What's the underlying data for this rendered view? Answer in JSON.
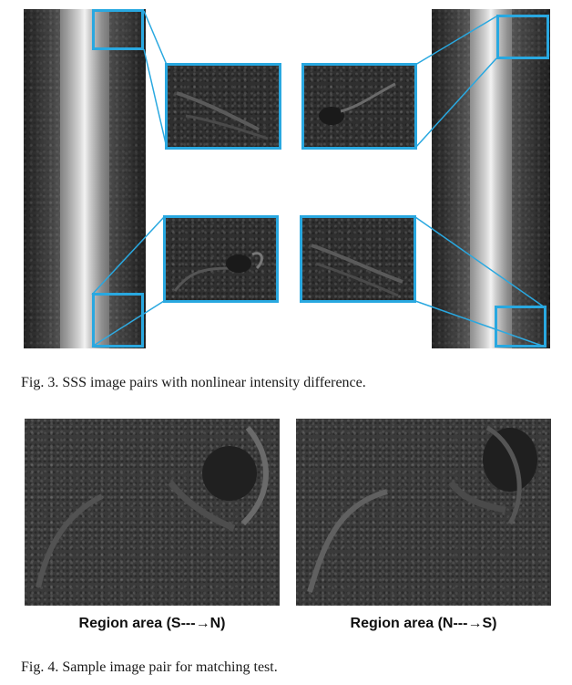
{
  "figure3": {
    "caption": "Fig. 3.   SSS image pairs with nonlinear intensity difference."
  },
  "figure4": {
    "left_label": "Region area (S---→N)",
    "right_label": "Region area (N---→S)",
    "caption": "Fig. 4.   Sample image pair for matching test."
  },
  "colors": {
    "highlight": "#29a8e0"
  }
}
